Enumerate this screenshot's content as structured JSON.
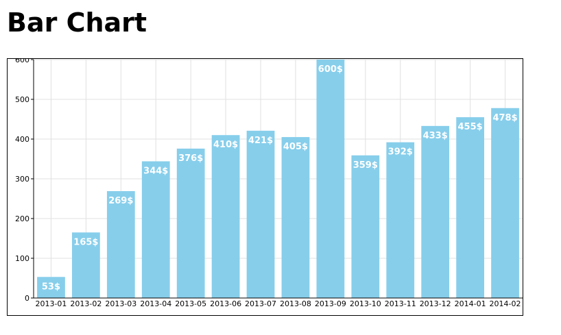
{
  "page": {
    "title": "Bar Chart"
  },
  "chart_data": {
    "type": "bar",
    "title": "",
    "xlabel": "",
    "ylabel": "",
    "categories": [
      "2013-01",
      "2013-02",
      "2013-03",
      "2013-04",
      "2013-05",
      "2013-06",
      "2013-07",
      "2013-08",
      "2013-09",
      "2013-10",
      "2013-11",
      "2013-12",
      "2014-01",
      "2014-02"
    ],
    "values": [
      53,
      165,
      269,
      344,
      376,
      410,
      421,
      405,
      600,
      359,
      392,
      433,
      455,
      478
    ],
    "data_labels": [
      "53$",
      "165$",
      "269$",
      "344$",
      "376$",
      "410$",
      "421$",
      "405$",
      "600$",
      "359$",
      "392$",
      "433$",
      "455$",
      "478$"
    ],
    "ylim": [
      0,
      600
    ],
    "yticks": [
      0,
      100,
      200,
      300,
      400,
      500,
      600
    ],
    "grid": true,
    "legend": "none",
    "colors": {
      "bar": "#87ceeb",
      "grid": "#e0e0e0",
      "axis": "#000000",
      "label": "#ffffff"
    }
  }
}
